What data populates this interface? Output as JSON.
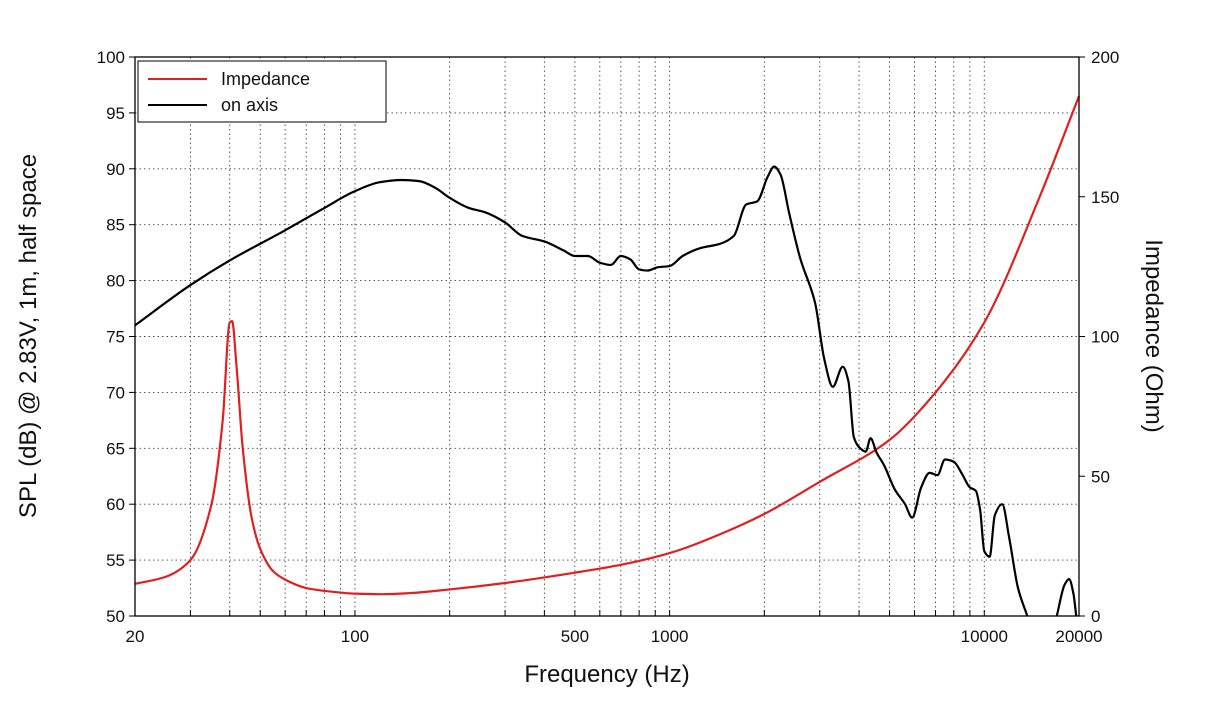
{
  "chart_data": {
    "type": "line",
    "xlabel": "Frequency (Hz)",
    "ylabel": "SPL (dB) @ 2.83V, 1m, half space",
    "y2label": "Impedance (Ohm)",
    "xscale": "log",
    "xlim": [
      20,
      20000
    ],
    "ylim": [
      50,
      100
    ],
    "y2lim": [
      0,
      200
    ],
    "grid": "dotted, log minor lines on x, 5 dB steps on y",
    "legend_position": "top-left",
    "x_tick_labels": [
      "20",
      "100",
      "500",
      "1000",
      "10000",
      "20000"
    ],
    "y_tick_labels": [
      "50",
      "55",
      "60",
      "65",
      "70",
      "75",
      "80",
      "85",
      "90",
      "95",
      "100"
    ],
    "y2_tick_labels": [
      "0",
      "50",
      "100",
      "150",
      "200"
    ],
    "series": [
      {
        "name": "Impedance",
        "color": "#e02020",
        "axis": "right",
        "points": [
          [
            20,
            11.5
          ],
          [
            25,
            14
          ],
          [
            30,
            20
          ],
          [
            35,
            40
          ],
          [
            38,
            70
          ],
          [
            40,
            105
          ],
          [
            40.7,
            105.5
          ],
          [
            42,
            90
          ],
          [
            44,
            60
          ],
          [
            47,
            35
          ],
          [
            50,
            24
          ],
          [
            55,
            16
          ],
          [
            60,
            13
          ],
          [
            70,
            10
          ],
          [
            80,
            9
          ],
          [
            100,
            8
          ],
          [
            120,
            7.8
          ],
          [
            150,
            8.2
          ],
          [
            200,
            9.5
          ],
          [
            300,
            11.8
          ],
          [
            500,
            15.5
          ],
          [
            700,
            18.3
          ],
          [
            1000,
            22.5
          ],
          [
            1500,
            30
          ],
          [
            2000,
            36.5
          ],
          [
            3000,
            48
          ],
          [
            5000,
            63
          ],
          [
            7000,
            80
          ],
          [
            10000,
            105
          ],
          [
            15000,
            150
          ],
          [
            20000,
            186
          ]
        ]
      },
      {
        "name": "on axis",
        "color": "#000000",
        "axis": "left",
        "points": [
          [
            20,
            76
          ],
          [
            30,
            79.6
          ],
          [
            40,
            81.8
          ],
          [
            60,
            84.5
          ],
          [
            80,
            86.5
          ],
          [
            100,
            88
          ],
          [
            120,
            88.8
          ],
          [
            140,
            89
          ],
          [
            160,
            88.9
          ],
          [
            180,
            88.3
          ],
          [
            200,
            87.4
          ],
          [
            230,
            86.5
          ],
          [
            260,
            86.1
          ],
          [
            300,
            85.2
          ],
          [
            340,
            84
          ],
          [
            400,
            83.5
          ],
          [
            460,
            82.7
          ],
          [
            500,
            82.2
          ],
          [
            550,
            82.2
          ],
          [
            600,
            81.6
          ],
          [
            650,
            81.4
          ],
          [
            700,
            82.2
          ],
          [
            750,
            81.9
          ],
          [
            800,
            81
          ],
          [
            850,
            80.9
          ],
          [
            920,
            81.2
          ],
          [
            1000,
            81.3
          ],
          [
            1100,
            82.2
          ],
          [
            1250,
            82.9
          ],
          [
            1450,
            83.3
          ],
          [
            1600,
            84
          ],
          [
            1750,
            86.8
          ],
          [
            1900,
            87.1
          ],
          [
            2050,
            89.3
          ],
          [
            2150,
            90.2
          ],
          [
            2250,
            89.5
          ],
          [
            2400,
            86
          ],
          [
            2600,
            82
          ],
          [
            2900,
            78
          ],
          [
            3100,
            73
          ],
          [
            3300,
            70.5
          ],
          [
            3550,
            72.3
          ],
          [
            3700,
            71
          ],
          [
            3850,
            66
          ],
          [
            4000,
            65.1
          ],
          [
            4200,
            64.7
          ],
          [
            4350,
            65.9
          ],
          [
            4550,
            64.6
          ],
          [
            4800,
            63.5
          ],
          [
            5200,
            61.3
          ],
          [
            5600,
            60
          ],
          [
            5900,
            58.8
          ],
          [
            6300,
            61.5
          ],
          [
            6700,
            62.8
          ],
          [
            7100,
            62.6
          ],
          [
            7500,
            64
          ],
          [
            8000,
            63.8
          ],
          [
            8500,
            62.7
          ],
          [
            9000,
            61.5
          ],
          [
            9400,
            61.2
          ],
          [
            9700,
            59.5
          ],
          [
            10000,
            55.8
          ],
          [
            10400,
            55.3
          ],
          [
            10800,
            59
          ],
          [
            11400,
            60
          ],
          [
            12000,
            57
          ],
          [
            12800,
            52.5
          ],
          [
            13700,
            50
          ]
        ]
      },
      {
        "name": "",
        "color": "#000000",
        "axis": "left",
        "points": [
          [
            17000,
            50
          ],
          [
            18000,
            52.8
          ],
          [
            18600,
            53.3
          ],
          [
            19200,
            52
          ],
          [
            19600,
            50
          ]
        ]
      }
    ]
  }
}
